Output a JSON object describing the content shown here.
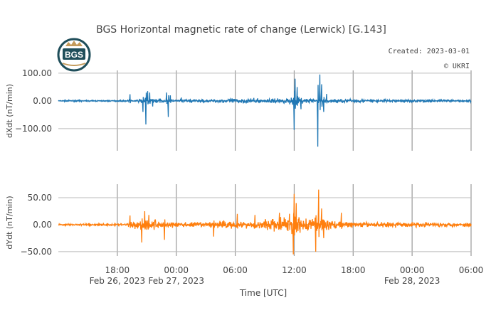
{
  "chart_data": {
    "title": "BGS Horizontal magnetic rate of change (Lerwick) [G.143]",
    "annotations": {
      "created": "Created: 2023-03-01",
      "copyright": "© UKRI",
      "logo_text": "BGS"
    },
    "xlabel": "Time [UTC]",
    "x_time_labels": [
      "18:00",
      "00:00",
      "06:00",
      "12:00",
      "18:00",
      "00:00",
      "06:00"
    ],
    "x_date_labels": [
      "Feb 26, 2023",
      "Feb 27, 2023",
      "Feb 28, 2023"
    ],
    "xlim_hours": [
      -6.0,
      36.0
    ],
    "colors": {
      "dXdt": "#1f77b4",
      "dYdt": "#ff7f0e",
      "grid": "#bbbbbb",
      "vgrid": "#999999"
    },
    "subplots": [
      {
        "type": "line",
        "name": "dXdt",
        "ylabel": "dXdt (nT/min)",
        "yticks": [
          "100.00",
          "0.00",
          "−100.00"
        ],
        "ytick_values": [
          100,
          0,
          -100
        ],
        "ylim": [
          -180,
          110
        ],
        "noise_profile": [
          [
            -6.0,
            1.5
          ],
          [
            2.0,
            1.5
          ],
          [
            2.5,
            8
          ],
          [
            4.0,
            5
          ],
          [
            5.0,
            3
          ],
          [
            6.0,
            2
          ],
          [
            7.0,
            4
          ],
          [
            9.0,
            3
          ],
          [
            12.0,
            6
          ],
          [
            15.0,
            5
          ],
          [
            17.0,
            6
          ],
          [
            18.0,
            14
          ],
          [
            19.0,
            6
          ],
          [
            21.0,
            4
          ],
          [
            22.5,
            5
          ],
          [
            24.0,
            4
          ],
          [
            27.0,
            3
          ],
          [
            30.0,
            3
          ],
          [
            33.0,
            3
          ],
          [
            36.0,
            3
          ]
        ],
        "spikes": [
          [
            1.3,
            24
          ],
          [
            2.6,
            -40
          ],
          [
            2.9,
            -85
          ],
          [
            3.1,
            35
          ],
          [
            3.3,
            30
          ],
          [
            3.6,
            -20
          ],
          [
            5.0,
            30
          ],
          [
            5.2,
            -58
          ],
          [
            5.4,
            20
          ],
          [
            6.5,
            12
          ],
          [
            18.0,
            -105
          ],
          [
            18.1,
            80
          ],
          [
            18.3,
            50
          ],
          [
            18.7,
            -30
          ],
          [
            20.4,
            -165
          ],
          [
            20.6,
            95
          ],
          [
            20.8,
            60
          ],
          [
            21.0,
            -40
          ],
          [
            21.3,
            25
          ]
        ]
      },
      {
        "type": "line",
        "name": "dYdt",
        "ylabel": "dYdt (nT/min)",
        "yticks": [
          "50.00",
          "0.00",
          "−50.00"
        ],
        "ytick_values": [
          50,
          0,
          -50
        ],
        "ylim": [
          -58,
          75
        ],
        "noise_profile": [
          [
            -6.0,
            1.0
          ],
          [
            1.0,
            1.5
          ],
          [
            2.5,
            8
          ],
          [
            4.0,
            6
          ],
          [
            6.0,
            3
          ],
          [
            7.0,
            3
          ],
          [
            9.0,
            3
          ],
          [
            11.0,
            5
          ],
          [
            13.0,
            4
          ],
          [
            14.0,
            5
          ],
          [
            15.0,
            7
          ],
          [
            17.0,
            9
          ],
          [
            18.0,
            14
          ],
          [
            19.0,
            8
          ],
          [
            20.0,
            10
          ],
          [
            21.0,
            9
          ],
          [
            22.0,
            5
          ],
          [
            24.0,
            3
          ],
          [
            27.0,
            3
          ],
          [
            30.0,
            3
          ],
          [
            33.0,
            2.5
          ],
          [
            36.0,
            2.5
          ]
        ],
        "spikes": [
          [
            1.3,
            17
          ],
          [
            2.5,
            -33
          ],
          [
            2.8,
            25
          ],
          [
            3.2,
            18
          ],
          [
            4.8,
            -28
          ],
          [
            9.8,
            -22
          ],
          [
            12.2,
            20
          ],
          [
            14.0,
            18
          ],
          [
            16.5,
            22
          ],
          [
            17.9,
            -55
          ],
          [
            18.0,
            57
          ],
          [
            18.2,
            40
          ],
          [
            18.6,
            -15
          ],
          [
            20.2,
            -50
          ],
          [
            20.5,
            65
          ],
          [
            20.8,
            30
          ],
          [
            21.0,
            -25
          ],
          [
            22.8,
            22
          ]
        ]
      }
    ]
  }
}
